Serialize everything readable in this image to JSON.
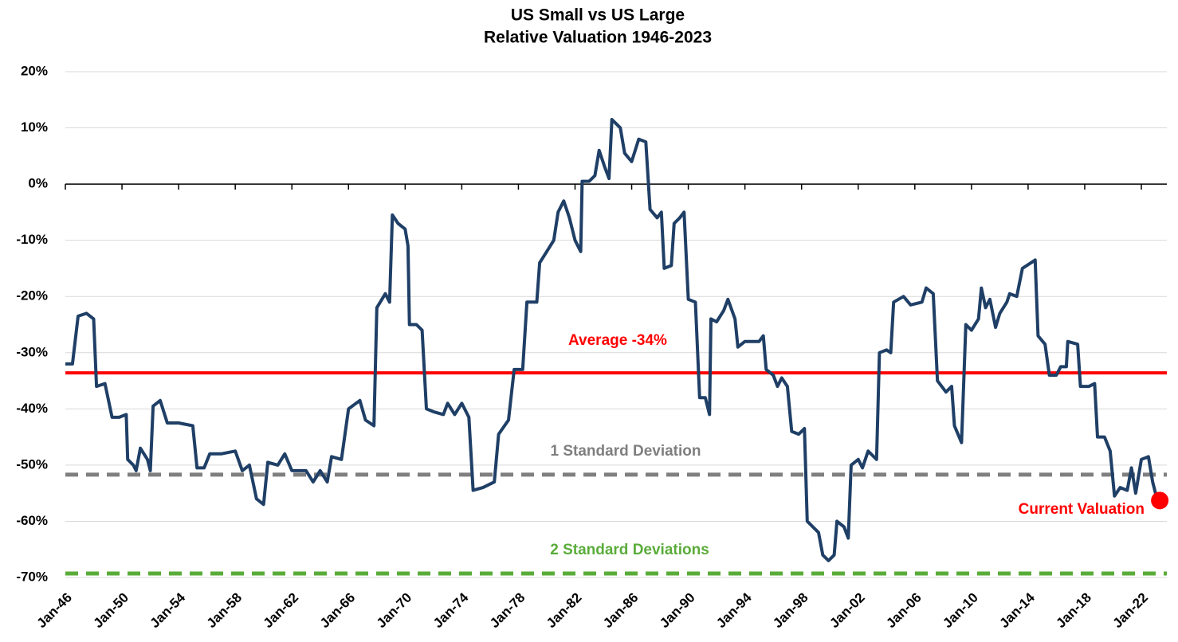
{
  "chart_data": {
    "type": "line",
    "title": "US Small vs US Large",
    "subtitle": "Relative Valuation 1946-2023",
    "color": "#1f3f66",
    "x": [
      1946.0,
      1946.5,
      1946.9,
      1947.5,
      1948.0,
      1948.2,
      1948.8,
      1949.3,
      1949.8,
      1950.3,
      1950.4,
      1950.8,
      1951.0,
      1951.3,
      1951.8,
      1952.0,
      1952.2,
      1952.7,
      1953.2,
      1954.0,
      1955.0,
      1955.3,
      1955.8,
      1956.2,
      1957.0,
      1958.0,
      1958.5,
      1959.0,
      1959.5,
      1960.0,
      1960.3,
      1961.0,
      1961.5,
      1962.0,
      1963.0,
      1963.5,
      1964.0,
      1964.5,
      1964.8,
      1965.5,
      1966.0,
      1966.8,
      1967.2,
      1967.8,
      1968.0,
      1968.6,
      1968.9,
      1969.1,
      1969.5,
      1970.0,
      1970.2,
      1970.3,
      1970.8,
      1971.2,
      1971.5,
      1972.0,
      1972.7,
      1973.0,
      1973.5,
      1974.0,
      1974.5,
      1974.8,
      1975.5,
      1976.3,
      1976.6,
      1977.3,
      1977.7,
      1978.3,
      1978.6,
      1979.3,
      1979.5,
      1980.0,
      1980.5,
      1980.8,
      1981.2,
      1981.6,
      1982.0,
      1982.4,
      1982.5,
      1983.0,
      1983.4,
      1983.7,
      1984.1,
      1984.4,
      1984.6,
      1985.2,
      1985.5,
      1986.0,
      1986.5,
      1987.0,
      1987.3,
      1987.8,
      1988.1,
      1988.3,
      1988.8,
      1989.0,
      1989.4,
      1989.7,
      1990.0,
      1990.5,
      1990.8,
      1991.2,
      1991.5,
      1991.6,
      1992.0,
      1992.5,
      1992.8,
      1993.3,
      1993.5,
      1994.0,
      1995.0,
      1995.3,
      1995.5,
      1996.0,
      1996.3,
      1996.6,
      1997.0,
      1997.3,
      1997.8,
      1998.2,
      1998.4,
      1998.8,
      1999.2,
      1999.5,
      1999.9,
      2000.3,
      2000.5,
      2001.0,
      2001.3,
      2001.5,
      2002.0,
      2002.3,
      2002.7,
      2003.3,
      2003.5,
      2004.0,
      2004.3,
      2004.5,
      2005.2,
      2005.7,
      2006.5,
      2006.8,
      2007.3,
      2007.6,
      2008.2,
      2008.6,
      2008.8,
      2009.3,
      2009.6,
      2010.0,
      2010.5,
      2010.7,
      2011.0,
      2011.3,
      2011.7,
      2012.0,
      2012.5,
      2012.7,
      2013.2,
      2013.6,
      2014.2,
      2014.5,
      2014.7,
      2015.2,
      2015.5,
      2016.0,
      2016.3,
      2016.7,
      2016.8,
      2017.5,
      2017.7,
      2018.3,
      2018.7,
      2018.9,
      2019.4,
      2019.8,
      2020.1,
      2020.5,
      2021.0,
      2021.3,
      2021.6,
      2022.0,
      2022.5,
      2022.8,
      2023.1
    ],
    "values": [
      -32,
      -32,
      -23.5,
      -23,
      -24,
      -36,
      -35.5,
      -41.5,
      -41.5,
      -41,
      -49,
      -50,
      -51,
      -47,
      -49,
      -51,
      -39.5,
      -38.5,
      -42.5,
      -42.5,
      -43,
      -50.5,
      -50.5,
      -48,
      -48,
      -47.5,
      -51,
      -50,
      -56,
      -57,
      -49.5,
      -50,
      -48,
      -51,
      -51,
      -53,
      -51,
      -53,
      -48.5,
      -49,
      -40,
      -38.5,
      -42,
      -43,
      -22,
      -19.5,
      -21,
      -5.5,
      -7,
      -8,
      -11,
      -25,
      -25,
      -26,
      -40,
      -40.5,
      -41,
      -39,
      -41,
      -39,
      -41.5,
      -54.5,
      -54,
      -53,
      -44.5,
      -42,
      -33,
      -33,
      -21,
      -21,
      -14,
      -12,
      -10,
      -5,
      -3,
      -6,
      -10,
      -12,
      0.5,
      0.5,
      1.5,
      6,
      3,
      1,
      11.5,
      10,
      5.5,
      4,
      8,
      7.5,
      -4.5,
      -6,
      -5,
      -15,
      -14.5,
      -7,
      -6,
      -5,
      -20.5,
      -21,
      -38,
      -38,
      -41,
      -24,
      -24.5,
      -22.5,
      -20.5,
      -24,
      -29,
      -28,
      -28,
      -27,
      -33,
      -34,
      -36,
      -34.5,
      -36,
      -44,
      -44.5,
      -43.5,
      -60,
      -61,
      -62,
      -66,
      -67,
      -66,
      -60,
      -61,
      -63,
      -50,
      -49,
      -50.5,
      -47.5,
      -49,
      -30,
      -29.5,
      -30,
      -21,
      -20,
      -21.5,
      -21,
      -18.5,
      -19.5,
      -35,
      -37,
      -36,
      -43,
      -46,
      -25,
      -26,
      -24,
      -18.5,
      -22,
      -20.5,
      -25.5,
      -23,
      -21,
      -19.5,
      -20,
      -15,
      -14,
      -13.5,
      -27,
      -28.5,
      -34,
      -34,
      -32.5,
      -32.5,
      -28,
      -28.5,
      -36,
      -36,
      -35.5,
      -45,
      -45,
      -47.5,
      -55.5,
      -54,
      -54.5,
      -50.5,
      -55,
      -49,
      -48.5,
      -53,
      -56
    ],
    "xlim": [
      1946,
      2023.8
    ],
    "ylim": [
      -70,
      20
    ],
    "xticks": [
      {
        "value": 1946,
        "label": "Jan-46"
      },
      {
        "value": 1950,
        "label": "Jan-50"
      },
      {
        "value": 1954,
        "label": "Jan-54"
      },
      {
        "value": 1958,
        "label": "Jan-58"
      },
      {
        "value": 1962,
        "label": "Jan-62"
      },
      {
        "value": 1966,
        "label": "Jan-66"
      },
      {
        "value": 1970,
        "label": "Jan-70"
      },
      {
        "value": 1974,
        "label": "Jan-74"
      },
      {
        "value": 1978,
        "label": "Jan-78"
      },
      {
        "value": 1982,
        "label": "Jan-82"
      },
      {
        "value": 1986,
        "label": "Jan-86"
      },
      {
        "value": 1990,
        "label": "Jan-90"
      },
      {
        "value": 1994,
        "label": "Jan-94"
      },
      {
        "value": 1998,
        "label": "Jan-98"
      },
      {
        "value": 2002,
        "label": "Jan-02"
      },
      {
        "value": 2006,
        "label": "Jan-06"
      },
      {
        "value": 2010,
        "label": "Jan-10"
      },
      {
        "value": 2014,
        "label": "Jan-14"
      },
      {
        "value": 2018,
        "label": "Jan-18"
      },
      {
        "value": 2022,
        "label": "Jan-22"
      }
    ],
    "yticks": [
      {
        "value": 20,
        "label": "20%"
      },
      {
        "value": 10,
        "label": "10%"
      },
      {
        "value": 0,
        "label": "0%"
      },
      {
        "value": -10,
        "label": "-10%"
      },
      {
        "value": -20,
        "label": "-20%"
      },
      {
        "value": -30,
        "label": "-30%"
      },
      {
        "value": -40,
        "label": "-40%"
      },
      {
        "value": -50,
        "label": "-50%"
      },
      {
        "value": -60,
        "label": "-60%"
      },
      {
        "value": -70,
        "label": "-70%"
      }
    ],
    "grid": true,
    "reference_lines": [
      {
        "label": "Average -34%",
        "value": -33.6,
        "color": "#ff0000",
        "dashed": false
      },
      {
        "label": "1 Standard Deviation",
        "value": -51.7,
        "color": "#7f7f7f",
        "dashed": true
      },
      {
        "label": "2 Standard Deviations",
        "value": -69.3,
        "color": "#5aac3a",
        "dashed": true
      }
    ],
    "marker": {
      "label": "Current Valuation",
      "x": 2023.3,
      "value": -56.3,
      "color": "#ff0000"
    }
  }
}
